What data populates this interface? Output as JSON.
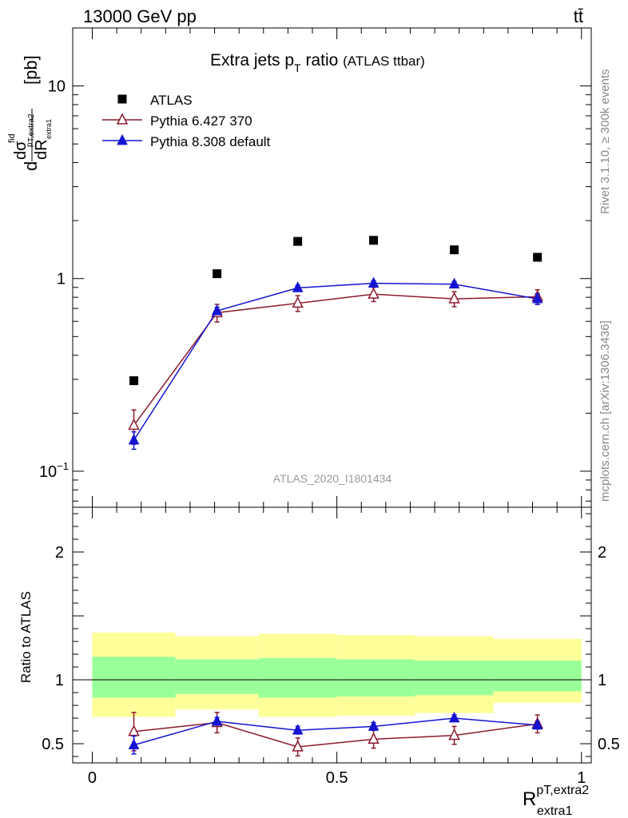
{
  "header": {
    "energy": "13000 GeV pp",
    "process": "tt̄"
  },
  "side_labels": {
    "rivet": "Rivet 3.1.10, ≥ 300k events",
    "mcplots": "mcplots.cern.ch [arXiv:1306.3436]"
  },
  "watermark": "ATLAS_2020_I1801434",
  "chart_data": [
    {
      "type": "scatter",
      "title": "Extra jets p",
      "title_sub": "T",
      "title_rest": " ratio",
      "subtitle": "(ATLAS ttbar)",
      "ylabel": "dσ/dR [pb]",
      "yscale": "log",
      "ylim": [
        0.065,
        20
      ],
      "xlim": [
        -0.04,
        1.02
      ],
      "yticks": [
        {
          "value": 0.1,
          "base": "10",
          "exp": "−1"
        },
        {
          "value": 1,
          "base": "1",
          "exp": ""
        },
        {
          "value": 10,
          "base": "10",
          "exp": ""
        }
      ],
      "x": [
        0.085,
        0.255,
        0.42,
        0.575,
        0.74,
        0.91
      ],
      "series": [
        {
          "name": "ATLAS",
          "color": "#000000",
          "marker": "square",
          "values": [
            0.295,
            1.06,
            1.56,
            1.58,
            1.41,
            1.29
          ],
          "errors": [
            0,
            0,
            0,
            0,
            0,
            0
          ]
        },
        {
          "name": "Pythia 6.427 370",
          "color": "#8b1a2b",
          "marker": "open-triangle",
          "values": [
            0.173,
            0.665,
            0.745,
            0.83,
            0.785,
            0.805
          ],
          "errors": [
            0.035,
            0.07,
            0.07,
            0.07,
            0.07,
            0.07
          ]
        },
        {
          "name": "Pythia 8.308 default",
          "color": "#1414d2",
          "marker": "filled-triangle",
          "values": [
            0.145,
            0.68,
            0.895,
            0.945,
            0.935,
            0.785
          ],
          "errors": [
            0.015,
            0.03,
            0.03,
            0.03,
            0.03,
            0.05
          ]
        }
      ]
    },
    {
      "type": "line",
      "ylabel": "Ratio to ATLAS",
      "xlabel": "R",
      "xlabel_sup": "pT,extra2",
      "xlabel_sub": "extra1",
      "ylim": [
        0.35,
        2.35
      ],
      "xlim": [
        -0.04,
        1.02
      ],
      "xticks": [
        {
          "value": 0,
          "label": "0"
        },
        {
          "value": 0.5,
          "label": "0.5"
        },
        {
          "value": 1,
          "label": "1"
        }
      ],
      "yticks": [
        {
          "value": 0.5,
          "label": "0.5"
        },
        {
          "value": 1,
          "label": "1"
        },
        {
          "value": 2,
          "label": "2"
        }
      ],
      "bands": {
        "bin_edges": [
          0,
          0.17,
          0.34,
          0.5,
          0.66,
          0.82,
          1.0
        ],
        "outer": {
          "color": "#ffff99",
          "low": [
            0.71,
            0.77,
            0.71,
            0.72,
            0.74,
            0.82
          ],
          "high": [
            1.37,
            1.34,
            1.36,
            1.35,
            1.34,
            1.32
          ]
        },
        "inner": {
          "color": "#99ff99",
          "low": [
            0.86,
            0.89,
            0.86,
            0.87,
            0.88,
            0.91
          ],
          "high": [
            1.18,
            1.16,
            1.17,
            1.16,
            1.15,
            1.15
          ]
        }
      },
      "series": [
        {
          "name": "Pythia 6.427 370",
          "color": "#8b1a2b",
          "marker": "open-triangle",
          "x": [
            0.085,
            0.255,
            0.42,
            0.575,
            0.74,
            0.91
          ],
          "values": [
            0.595,
            0.665,
            0.475,
            0.535,
            0.565,
            0.655
          ],
          "errors": [
            0.15,
            0.08,
            0.07,
            0.07,
            0.07,
            0.07
          ]
        },
        {
          "name": "Pythia 8.308 default",
          "color": "#1414d2",
          "marker": "filled-triangle",
          "x": [
            0.085,
            0.255,
            0.42,
            0.575,
            0.74,
            0.91
          ],
          "values": [
            0.49,
            0.675,
            0.605,
            0.635,
            0.7,
            0.645
          ],
          "errors": [
            0.07,
            0.03,
            0.03,
            0.03,
            0.025,
            0.03
          ]
        }
      ]
    }
  ]
}
